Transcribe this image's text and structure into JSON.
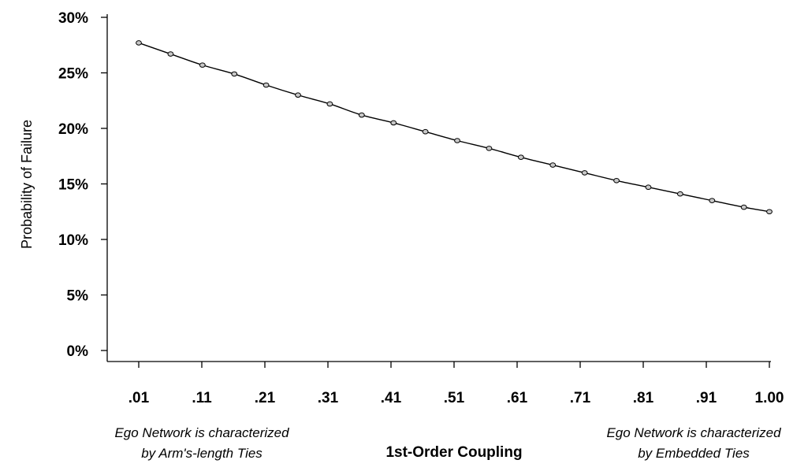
{
  "chart_data": {
    "type": "line",
    "ylabel": "Probability of Failure",
    "xlabel": "1st-Order Coupling",
    "y_ticks": [
      "0%",
      "5%",
      "10%",
      "15%",
      "20%",
      "25%",
      "30%"
    ],
    "x_tick_labels": [
      ".01",
      ".11",
      ".21",
      ".31",
      ".41",
      ".51",
      ".61",
      ".71",
      ".81",
      ".91",
      "1.00"
    ],
    "ylim": [
      0,
      0.3
    ],
    "xlim": [
      0.01,
      1.0
    ],
    "grid": false,
    "annotations": {
      "left": [
        "Ego Network is characterized",
        "by Arm's-length Ties"
      ],
      "right": [
        "Ego Network is characterized",
        "by Embedded Ties"
      ]
    },
    "series": [
      {
        "x": [
          0.01,
          0.06,
          0.11,
          0.16,
          0.21,
          0.26,
          0.31,
          0.36,
          0.41,
          0.46,
          0.51,
          0.56,
          0.61,
          0.66,
          0.71,
          0.76,
          0.81,
          0.86,
          0.91,
          0.96,
          1.0
        ],
        "y": [
          0.277,
          0.267,
          0.257,
          0.249,
          0.239,
          0.23,
          0.222,
          0.212,
          0.205,
          0.197,
          0.189,
          0.182,
          0.174,
          0.167,
          0.16,
          0.153,
          0.147,
          0.141,
          0.135,
          0.129,
          0.125
        ]
      }
    ]
  }
}
